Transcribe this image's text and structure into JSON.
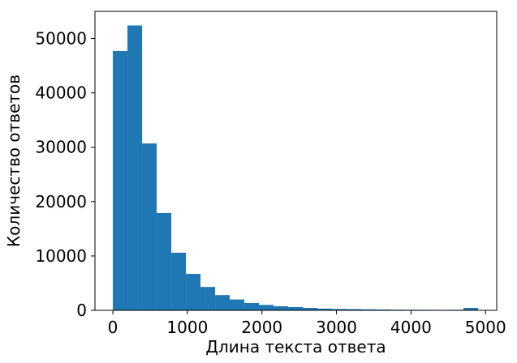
{
  "chart_data": {
    "type": "bar",
    "subtype": "histogram",
    "xlabel": "Длина текста ответа",
    "ylabel": "Количество ответов",
    "xlim": [
      -240,
      5150
    ],
    "ylim": [
      0,
      55000
    ],
    "bar_color": "#1f77b4",
    "grid": false,
    "x_ticks": [
      0,
      1000,
      2000,
      3000,
      4000,
      5000
    ],
    "x_tick_labels": [
      "0",
      "1000",
      "2000",
      "3000",
      "4000",
      "5000"
    ],
    "y_ticks": [
      0,
      10000,
      20000,
      30000,
      40000,
      50000
    ],
    "y_tick_labels": [
      "0",
      "10000",
      "20000",
      "30000",
      "40000",
      "50000"
    ],
    "bin_edges": [
      0,
      196,
      392,
      588,
      784,
      980,
      1176,
      1372,
      1568,
      1764,
      1960,
      2156,
      2352,
      2548,
      2744,
      2940,
      3136,
      3332,
      3528,
      3724,
      3920,
      4116,
      4312,
      4508,
      4704,
      4900
    ],
    "counts": [
      47700,
      52400,
      30700,
      17900,
      10600,
      6700,
      4300,
      2800,
      2000,
      1350,
      1000,
      750,
      600,
      450,
      320,
      250,
      220,
      180,
      150,
      120,
      110,
      100,
      90,
      100,
      450
    ]
  }
}
